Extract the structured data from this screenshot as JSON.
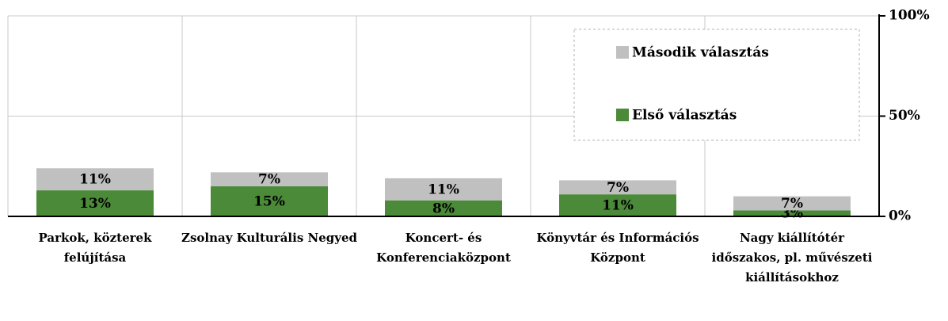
{
  "chart_data": {
    "type": "stacked_bar",
    "categories": [
      "Parkok, közterek felújítása",
      "Zsolnay Kulturális Negyed",
      "Koncert- és Konferenciaközpont",
      "Könyvtár és Információs Központ",
      "Nagy kiállítótér időszakos, pl. művészeti kiállításokhoz"
    ],
    "series": [
      {
        "name": "Első választás",
        "color": "#4a8a38",
        "values": [
          13,
          15,
          8,
          11,
          3
        ],
        "value_labels": [
          "13%",
          "15%",
          "8%",
          "11%",
          "3%"
        ]
      },
      {
        "name": "Második választás",
        "color": "#c0c0c0",
        "values": [
          11,
          7,
          11,
          7,
          7
        ],
        "value_labels": [
          "11%",
          "7%",
          "11%",
          "7%",
          "7%"
        ]
      }
    ],
    "ylim": [
      0,
      100
    ],
    "yticks": [
      {
        "value": 0,
        "label": "0%"
      },
      {
        "value": 50,
        "label": "50%"
      },
      {
        "value": 100,
        "label": "100%"
      }
    ],
    "grid": true
  }
}
